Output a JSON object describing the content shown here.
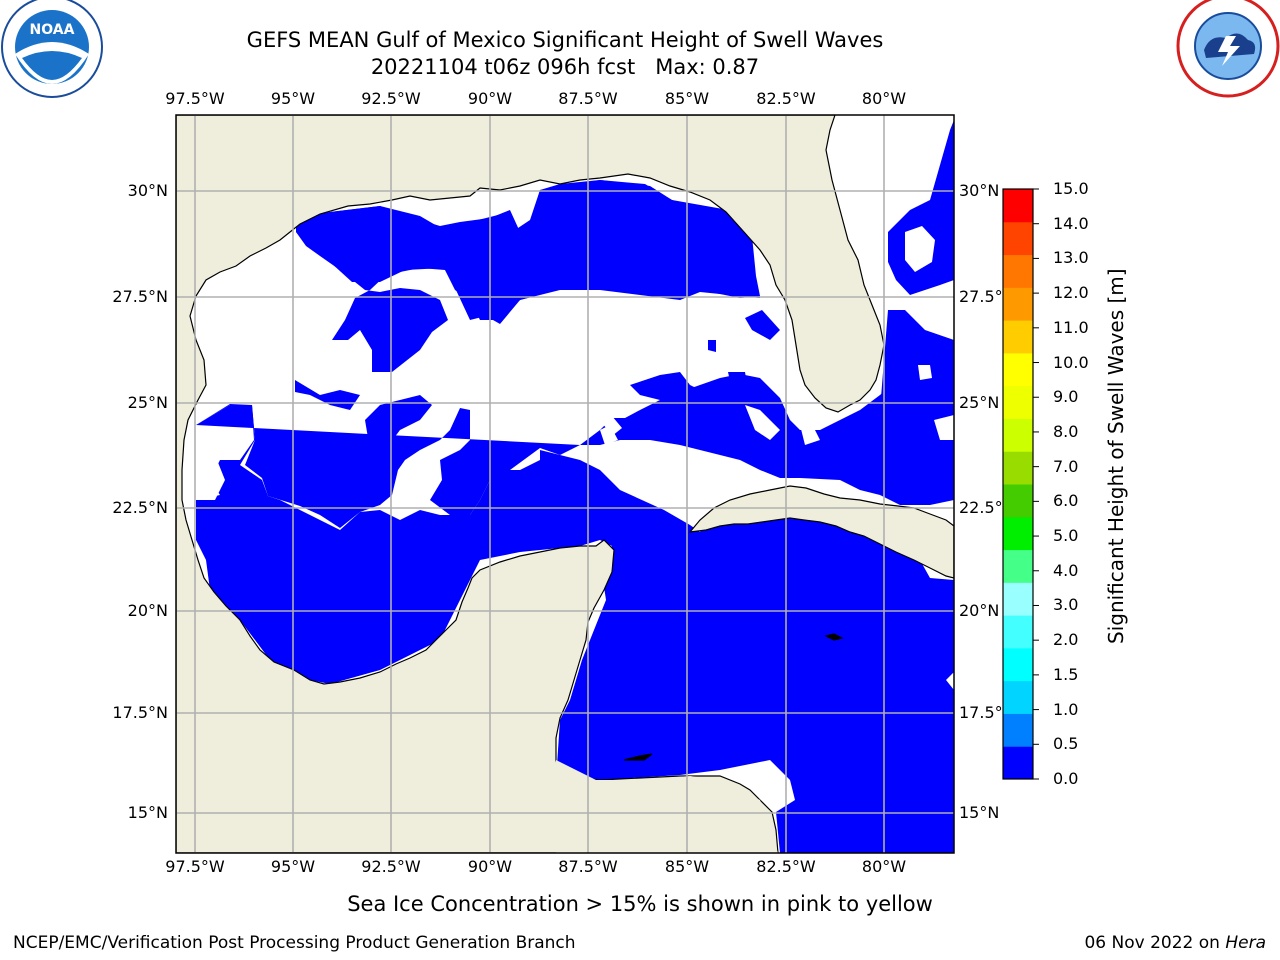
{
  "header": {
    "title_line1": "GEFS MEAN Gulf of Mexico Significant Height of Swell Waves",
    "title_line2": "20221104 t06z 096h fcst   Max: 0.87"
  },
  "logos": {
    "left": {
      "name": "NOAA",
      "ring_text": "NATIONAL OCEANIC AND ATMOSPHERIC ADMINISTRATION · U.S. DEPARTMENT OF COMMERCE"
    },
    "right": {
      "name": "NATIONAL WEATHER SERVICE"
    }
  },
  "map": {
    "lon_labels": [
      "97.5°W",
      "95°W",
      "92.5°W",
      "90°W",
      "87.5°W",
      "85°W",
      "82.5°W",
      "80°W"
    ],
    "lat_labels_left": [
      "30°N",
      "27.5°N",
      "25°N",
      "22.5°N",
      "20°N",
      "17.5°N",
      "15°N"
    ],
    "lat_labels_right": [
      "30°N",
      "27.5°N",
      "25°N",
      "22.5°N",
      "20°N",
      "17.5°N",
      "15°N"
    ],
    "extent": {
      "lon": [
        -98,
        -78.2
      ],
      "lat": [
        14,
        31.8
      ]
    },
    "colors": {
      "land": "#efeedd",
      "water_low": "#0000ff",
      "water_mid": "#0080ff",
      "no_data": "#ffffff",
      "grid": "#b0b0b0",
      "coast": "#000000"
    }
  },
  "colorbar": {
    "title": "Significant Height of Swell Waves [m]",
    "unit": "m",
    "ticks": [
      "0.0",
      "0.5",
      "1.0",
      "1.5",
      "2.0",
      "3.0",
      "4.0",
      "5.0",
      "6.0",
      "7.0",
      "8.0",
      "9.0",
      "10.0",
      "11.0",
      "12.0",
      "13.0",
      "14.0",
      "15.0"
    ],
    "colors": [
      "#0000ff",
      "#0080ff",
      "#00d4ff",
      "#00ffff",
      "#44ffff",
      "#99ffff",
      "#44ff88",
      "#00ee00",
      "#44cc00",
      "#99dd00",
      "#ccff00",
      "#eeff00",
      "#ffff00",
      "#ffcc00",
      "#ff9900",
      "#ff7700",
      "#ff4400",
      "#ff0000"
    ]
  },
  "note": "Sea Ice Concentration > 15% is shown in pink to yellow",
  "footer": {
    "left": "NCEP/EMC/Verification Post Processing Product Generation Branch",
    "right_prefix": "06 Nov 2022 on ",
    "right_host": "Hera"
  }
}
